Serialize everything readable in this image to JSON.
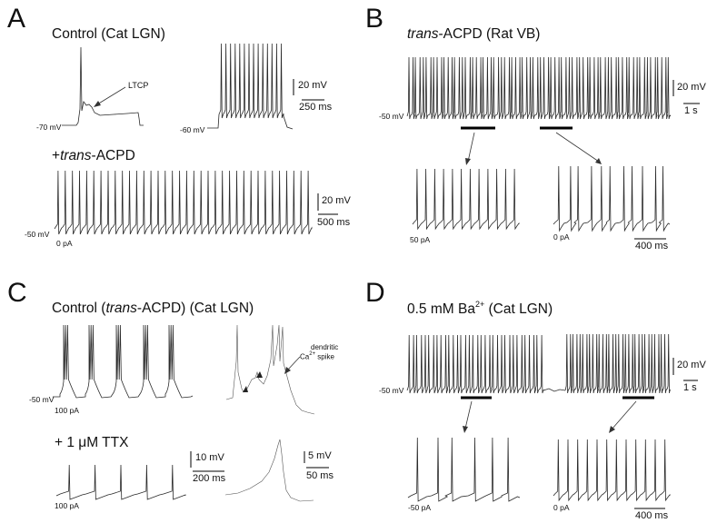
{
  "panels": {
    "A": {
      "letter": "A",
      "title": "Control (Cat LGN)",
      "ltcp_label": "LTCP",
      "vm_left": "-70 mV",
      "vm_right": "-60 mV",
      "scale_v": "20 mV",
      "scale_t": "250 ms",
      "drug_prefix": "+",
      "drug_italic": "trans",
      "drug_suffix": "-ACPD",
      "vm_bottom": "-50 mV",
      "current_bottom": "0 pA",
      "scale_v2": "20 mV",
      "scale_t2": "500 ms"
    },
    "B": {
      "letter": "B",
      "title_italic": "trans",
      "title_rest": "-ACPD (Rat VB)",
      "vm": "-50 mV",
      "scale_v": "20 mV",
      "scale_t": "1 s",
      "current_left": "50 pA",
      "current_right": "0 pA",
      "scale_t2": "400 ms"
    },
    "C": {
      "letter": "C",
      "title_pre": "Control (",
      "title_italic": "trans",
      "title_post": "-ACPD) (Cat LGN)",
      "vm": "-50 mV",
      "current_top": "100 pA",
      "dendritic_line1": "dendritic",
      "dendritic_line2_pre": "Ca",
      "dendritic_sup": "2+",
      "dendritic_line2_post": " spike",
      "ttx_label": "+ 1 μM TTX",
      "current_bottom": "100 pA",
      "scale_v": "10 mV",
      "scale_t": "200 ms",
      "scale_v2": "5 mV",
      "scale_t2": "50 ms"
    },
    "D": {
      "letter": "D",
      "title_pre": "0.5 mM Ba",
      "title_sup": "2+",
      "title_post": " (Cat LGN)",
      "vm": "-50 mV",
      "scale_v": "20 mV",
      "scale_t": "1 s",
      "current_left": "-50 pA",
      "current_right": "0 pA",
      "scale_t2": "400 ms"
    }
  }
}
